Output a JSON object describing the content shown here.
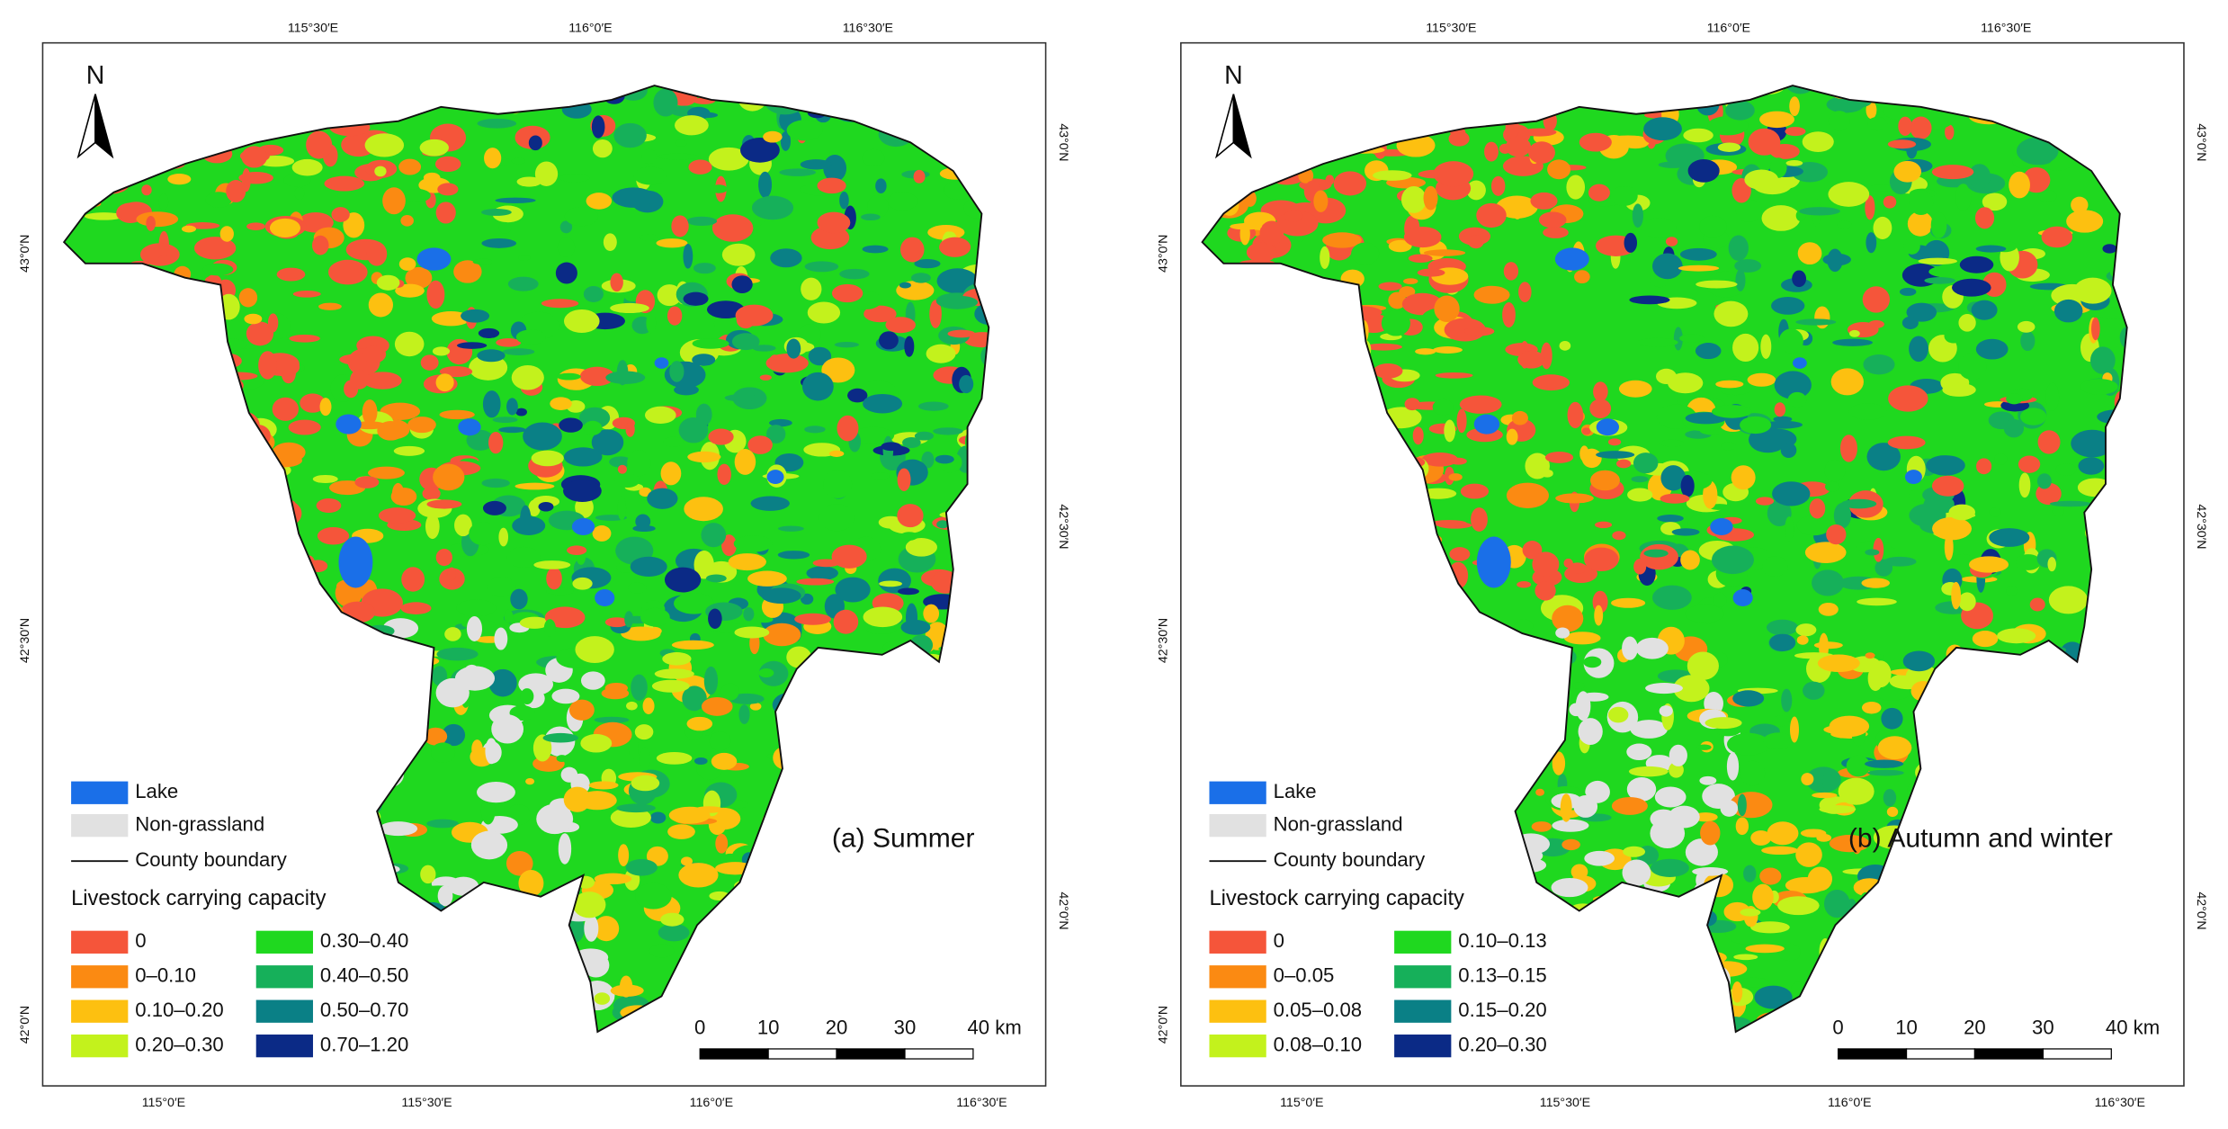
{
  "panels": [
    {
      "label": "(a) Summer",
      "north": "N",
      "top_axis": [
        "115°30′E",
        "116°0′E",
        "116°30′E"
      ],
      "bottom_axis": [
        "115°0′E",
        "115°30′E",
        "116°0′E",
        "116°30′E"
      ],
      "left_axis": [
        "43°0′N",
        "42°30′N",
        "42°0′N"
      ],
      "right_axis": [
        "43°0′N",
        "42°30′N",
        "42°0′N"
      ],
      "legend": {
        "items": [
          {
            "label": "Lake",
            "color": "#1a6fe8"
          },
          {
            "label": "Non-grassland",
            "color": "#e1e1e1"
          },
          {
            "label": "County boundary"
          }
        ],
        "title": "Livestock carrying capacity",
        "classes": [
          {
            "label": "0",
            "color": "#f5553a"
          },
          {
            "label": "0–0.10",
            "color": "#fb8a12"
          },
          {
            "label": "0.10–0.20",
            "color": "#fdc010"
          },
          {
            "label": "0.20–0.30",
            "color": "#c3f21c"
          },
          {
            "label": "0.30–0.40",
            "color": "#1fd81f"
          },
          {
            "label": "0.40–0.50",
            "color": "#16b05a"
          },
          {
            "label": "0.50–0.70",
            "color": "#0a8086"
          },
          {
            "label": "0.70–1.20",
            "color": "#0b2a86"
          }
        ]
      },
      "scale_bar": [
        "0",
        "10",
        "20",
        "30",
        "40 km"
      ]
    },
    {
      "label": "(b) Autumn and winter",
      "north": "N",
      "top_axis": [
        "115°30′E",
        "116°0′E",
        "116°30′E"
      ],
      "bottom_axis": [
        "115°0′E",
        "115°30′E",
        "116°0′E",
        "116°30′E"
      ],
      "left_axis": [
        "43°0′N",
        "42°30′N",
        "42°0′N"
      ],
      "right_axis": [
        "43°0′N",
        "42°30′N",
        "42°0′N"
      ],
      "legend": {
        "items": [
          {
            "label": "Lake",
            "color": "#1a6fe8"
          },
          {
            "label": "Non-grassland",
            "color": "#e1e1e1"
          },
          {
            "label": "County boundary"
          }
        ],
        "title": "Livestock carrying capacity",
        "classes": [
          {
            "label": "0",
            "color": "#f5553a"
          },
          {
            "label": "0–0.05",
            "color": "#fb8a12"
          },
          {
            "label": "0.05–0.08",
            "color": "#fdc010"
          },
          {
            "label": "0.08–0.10",
            "color": "#c3f21c"
          },
          {
            "label": "0.10–0.13",
            "color": "#1fd81f"
          },
          {
            "label": "0.13–0.15",
            "color": "#16b05a"
          },
          {
            "label": "0.15–0.20",
            "color": "#0a8086"
          },
          {
            "label": "0.20–0.30",
            "color": "#0b2a86"
          }
        ]
      },
      "scale_bar": [
        "0",
        "10",
        "20",
        "30",
        "40 km"
      ]
    }
  ]
}
